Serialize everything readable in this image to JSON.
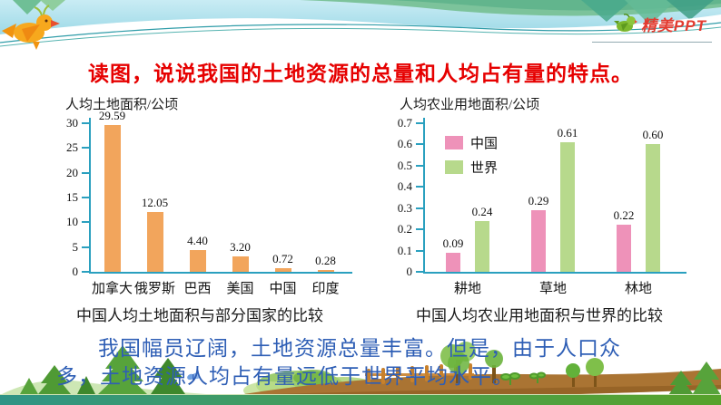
{
  "banner": {
    "logo_text": "精美PPT"
  },
  "title": "读图，说说我国的土地资源的总量和人均占有量的特点。",
  "footer": {
    "line1": "我国幅员辽阔，土地资源总量丰富。但是，由于人口众",
    "line2": "多，土地资源人均占有量远低于世界平均水平。"
  },
  "colors": {
    "title_red": "#e60000",
    "footer_blue": "#2e5eb5",
    "axis_teal": "#2aa0bf",
    "bar_orange": "#f2a55c",
    "bar_pink": "#ee92b9",
    "bar_green": "#b7d98c"
  },
  "chart_data": [
    {
      "type": "bar",
      "title": "人均土地面积/公顷",
      "caption": "中国人均土地面积与部分国家的比较",
      "categories": [
        "加拿大",
        "俄罗斯",
        "巴西",
        "美国",
        "中国",
        "印度"
      ],
      "values": [
        29.59,
        12.05,
        4.4,
        3.2,
        0.72,
        0.28
      ],
      "value_labels": [
        "29.59",
        "12.05",
        "4.40",
        "3.20",
        "0.72",
        "0.28"
      ],
      "bar_color_key": "bar_orange",
      "ylabel": "人均土地面积/公顷",
      "ylim": [
        0,
        30
      ],
      "yticks": [
        "0",
        "5",
        "10",
        "15",
        "20",
        "25",
        "30"
      ],
      "grid": false,
      "legend_position": "none"
    },
    {
      "type": "bar",
      "title": "人均农业用地面积/公顷",
      "caption": "中国人均农业用地面积与世界的比较",
      "categories": [
        "耕地",
        "草地",
        "林地"
      ],
      "series": [
        {
          "name": "中国",
          "values": [
            0.09,
            0.29,
            0.22
          ],
          "labels": [
            "0.09",
            "0.29",
            "0.22"
          ],
          "color": "#ee92b9"
        },
        {
          "name": "世界",
          "values": [
            0.24,
            0.61,
            0.6
          ],
          "labels": [
            "0.24",
            "0.61",
            "0.60"
          ],
          "color": "#b7d98c"
        }
      ],
      "legend": [
        "中国",
        "世界"
      ],
      "legend_position": "upper-left-inside",
      "ylabel": "人均农业用地面积/公顷",
      "ylim": [
        0,
        0.7
      ],
      "yticks": [
        "0",
        "0.1",
        "0.2",
        "0.3",
        "0.4",
        "0.5",
        "0.6",
        "0.7"
      ],
      "grid": false
    }
  ]
}
